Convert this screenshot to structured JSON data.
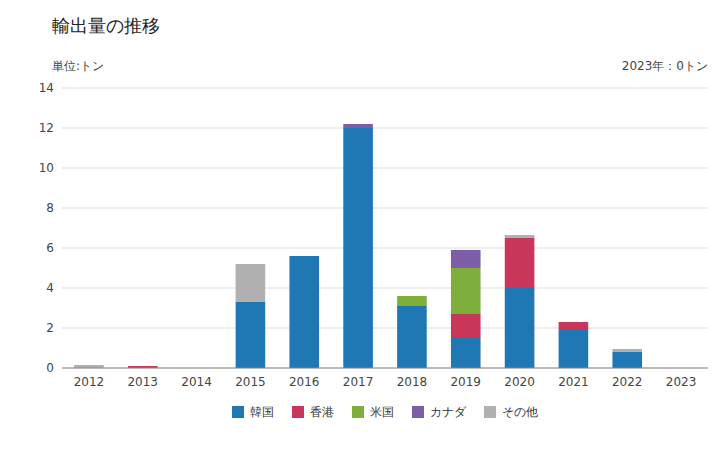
{
  "chart_data": {
    "type": "bar",
    "stacked": true,
    "title": "輸出量の推移",
    "ylabel": "単位:トン",
    "annotations": [
      "2023年：0トン"
    ],
    "categories": [
      "2012",
      "2013",
      "2014",
      "2015",
      "2016",
      "2017",
      "2018",
      "2019",
      "2020",
      "2021",
      "2022",
      "2023"
    ],
    "series": [
      {
        "name": "韓国",
        "color": "#1f77b4",
        "values": [
          0.0,
          0.0,
          0.0,
          3.3,
          5.6,
          12.0,
          3.1,
          1.5,
          4.0,
          1.9,
          0.8,
          0.0
        ]
      },
      {
        "name": "香港",
        "color": "#c8365a",
        "values": [
          0.0,
          0.1,
          0.0,
          0.0,
          0.0,
          0.0,
          0.0,
          1.2,
          2.5,
          0.4,
          0.0,
          0.0
        ]
      },
      {
        "name": "米国",
        "color": "#7faf3b",
        "values": [
          0.0,
          0.0,
          0.0,
          0.0,
          0.0,
          0.0,
          0.5,
          2.3,
          0.0,
          0.0,
          0.0,
          0.0
        ]
      },
      {
        "name": "カナダ",
        "color": "#7b5ea7",
        "values": [
          0.0,
          0.0,
          0.0,
          0.0,
          0.0,
          0.2,
          0.0,
          0.9,
          0.0,
          0.0,
          0.0,
          0.0
        ]
      },
      {
        "name": "その他",
        "color": "#b0b0b0",
        "values": [
          0.15,
          0.0,
          0.0,
          1.9,
          0.0,
          0.0,
          0.0,
          0.0,
          0.15,
          0.0,
          0.15,
          0.0
        ]
      }
    ],
    "ylim": [
      0,
      14
    ],
    "yticks": [
      0,
      2,
      4,
      6,
      8,
      10,
      12,
      14
    ],
    "grid": true,
    "legend": "bottom"
  }
}
